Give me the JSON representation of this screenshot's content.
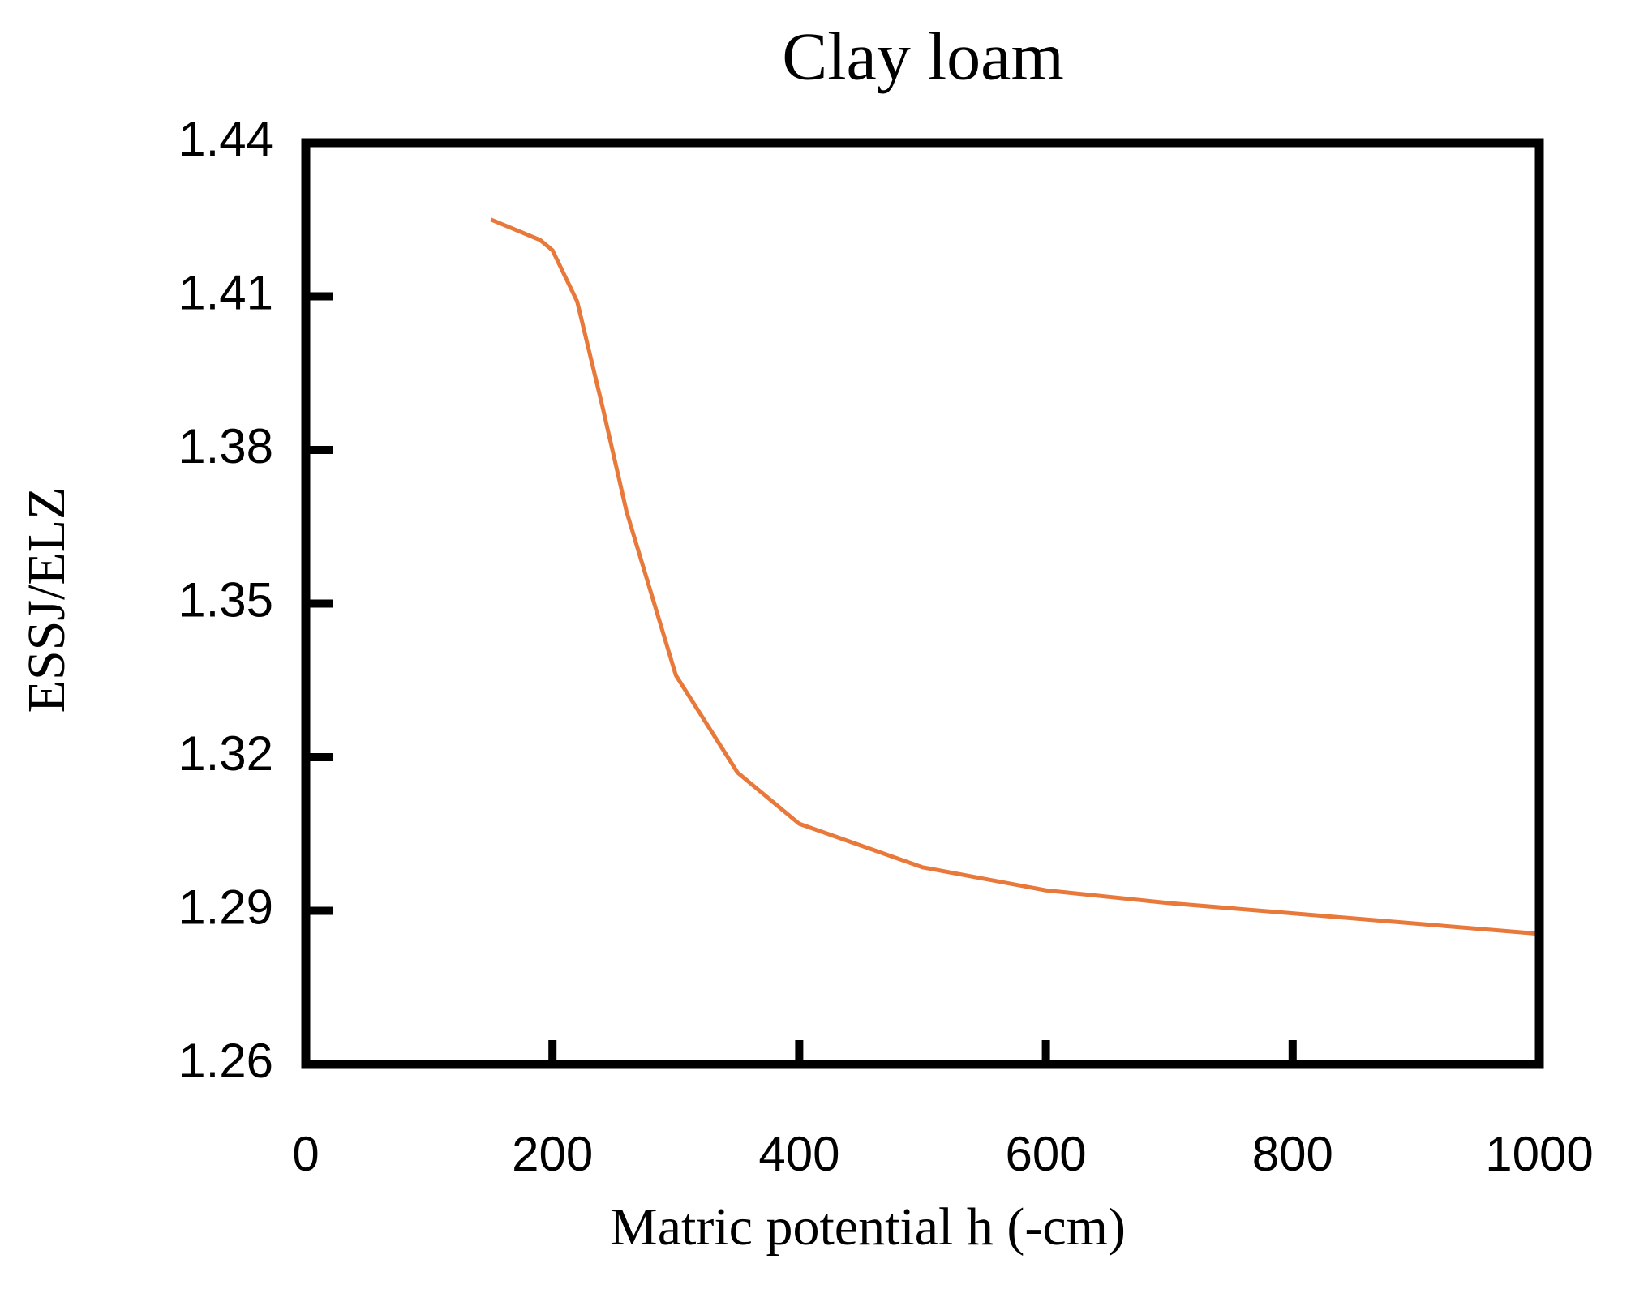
{
  "chart_data": {
    "type": "line",
    "title": "Clay loam",
    "x_label": "Matric potential h (-cm)",
    "y_label": "ESSJ/ELZ",
    "x": [
      150,
      190,
      200,
      220,
      240,
      260,
      280,
      300,
      350,
      400,
      500,
      600,
      700,
      800,
      900,
      1000
    ],
    "series": [
      {
        "name": "ESSJ/ELZ",
        "color": "#e8793a",
        "values": [
          1.425,
          1.421,
          1.419,
          1.409,
          1.389,
          1.368,
          1.352,
          1.336,
          1.317,
          1.307,
          1.2985,
          1.294,
          1.2915,
          1.2895,
          1.2875,
          1.2855
        ]
      }
    ],
    "xlim": [
      0,
      1000
    ],
    "xticks": [
      0,
      200,
      400,
      600,
      800,
      1000
    ],
    "ylim": [
      1.26,
      1.44
    ],
    "yticks": [
      1.26,
      1.29,
      1.32,
      1.35,
      1.38,
      1.41,
      1.44
    ]
  }
}
